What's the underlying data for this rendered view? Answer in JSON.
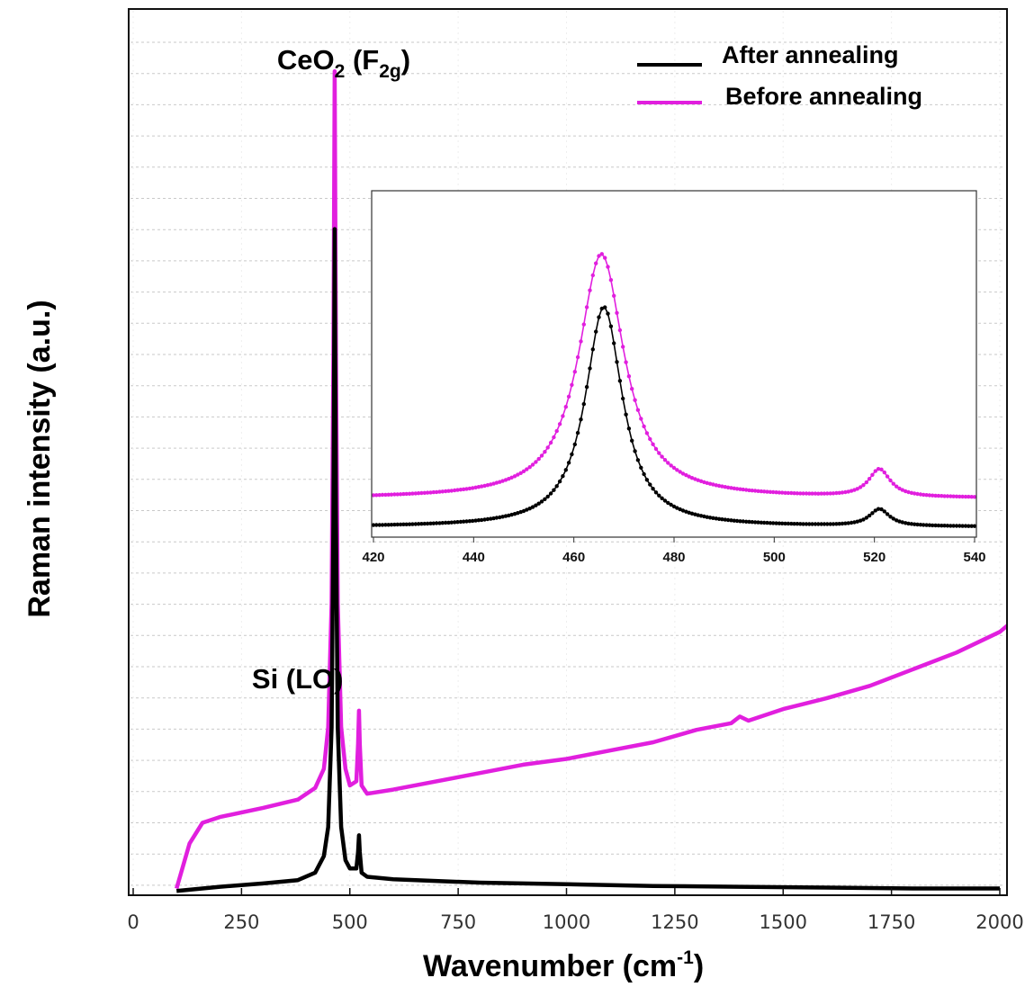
{
  "chart_data": [
    {
      "type": "line",
      "xlabel": "Wavenumber (cm",
      "xlabel_sup": "-1",
      "xlabel_end": ")",
      "ylabel": "Raman intensity (a.u.)",
      "xlim": [
        0,
        2000
      ],
      "ylim": [
        0,
        100
      ],
      "x_ticks": [
        0,
        250,
        500,
        750,
        1000,
        1250,
        1500,
        1750,
        2000
      ],
      "x_tick_labels": [
        "0",
        "250",
        "500",
        "750",
        "1000",
        "1250",
        "1500",
        "1750",
        "2000"
      ],
      "grid": true,
      "legend_position": "top-right",
      "annotations": {
        "ceo2": {
          "base": "CeO",
          "sub": "2",
          "mid": " (F",
          "sub2": "2g",
          "end": ")",
          "x": 465
        },
        "si": {
          "text": "Si (LO)",
          "x": 521
        }
      },
      "series": [
        {
          "name": "After annealing",
          "color": "#000000",
          "points": [
            [
              100,
              0.3
            ],
            [
              200,
              0.8
            ],
            [
              300,
              1.2
            ],
            [
              380,
              1.6
            ],
            [
              420,
              2.5
            ],
            [
              440,
              4.5
            ],
            [
              450,
              8
            ],
            [
              458,
              20
            ],
            [
              462,
              45
            ],
            [
              465,
              80
            ],
            [
              468,
              45
            ],
            [
              472,
              20
            ],
            [
              480,
              8
            ],
            [
              490,
              4
            ],
            [
              500,
              3
            ],
            [
              515,
              3
            ],
            [
              519,
              5
            ],
            [
              521,
              7
            ],
            [
              523,
              5
            ],
            [
              527,
              2.5
            ],
            [
              540,
              2
            ],
            [
              600,
              1.7
            ],
            [
              800,
              1.3
            ],
            [
              1000,
              1.1
            ],
            [
              1200,
              0.9
            ],
            [
              1400,
              0.8
            ],
            [
              1600,
              0.7
            ],
            [
              1800,
              0.6
            ],
            [
              2000,
              0.6
            ]
          ]
        },
        {
          "name": "Before annealing",
          "color": "#e11fde",
          "points": [
            [
              100,
              0.6
            ],
            [
              130,
              6
            ],
            [
              160,
              8.5
            ],
            [
              200,
              9.2
            ],
            [
              300,
              10.3
            ],
            [
              380,
              11.3
            ],
            [
              420,
              12.7
            ],
            [
              440,
              15
            ],
            [
              450,
              20
            ],
            [
              458,
              35
            ],
            [
              462,
              65
            ],
            [
              465,
              99
            ],
            [
              468,
              65
            ],
            [
              472,
              35
            ],
            [
              480,
              20
            ],
            [
              490,
              15
            ],
            [
              500,
              13
            ],
            [
              515,
              13.5
            ],
            [
              519,
              18
            ],
            [
              521,
              22
            ],
            [
              523,
              18
            ],
            [
              527,
              13
            ],
            [
              540,
              12
            ],
            [
              600,
              12.5
            ],
            [
              750,
              14
            ],
            [
              900,
              15.5
            ],
            [
              1000,
              16.2
            ],
            [
              1100,
              17.2
            ],
            [
              1200,
              18.2
            ],
            [
              1300,
              19.7
            ],
            [
              1380,
              20.5
            ],
            [
              1400,
              21.3
            ],
            [
              1420,
              20.8
            ],
            [
              1500,
              22.2
            ],
            [
              1600,
              23.5
            ],
            [
              1700,
              25
            ],
            [
              1800,
              27
            ],
            [
              1900,
              29
            ],
            [
              2000,
              31.5
            ],
            [
              2030,
              32.8
            ]
          ]
        }
      ]
    },
    {
      "type": "line",
      "role": "inset",
      "xlim": [
        420,
        540
      ],
      "ylim": [
        0,
        100
      ],
      "x_ticks": [
        420,
        440,
        460,
        480,
        500,
        520,
        540
      ],
      "x_tick_labels": [
        "420",
        "440",
        "460",
        "480",
        "500",
        "520",
        "540"
      ],
      "series": [
        {
          "name": "After annealing",
          "color": "#000000",
          "peaks": [
            {
              "center": 466,
              "width": 4.5,
              "height": 72
            },
            {
              "center": 521,
              "width": 2.4,
              "height": 5.5
            }
          ],
          "baseline": 1.2
        },
        {
          "name": "Before annealing",
          "color": "#e11fde",
          "peaks": [
            {
              "center": 465.5,
              "width": 5.5,
              "height": 80
            },
            {
              "center": 521,
              "width": 2.6,
              "height": 9
            }
          ],
          "baseline": 10.5
        }
      ]
    }
  ]
}
